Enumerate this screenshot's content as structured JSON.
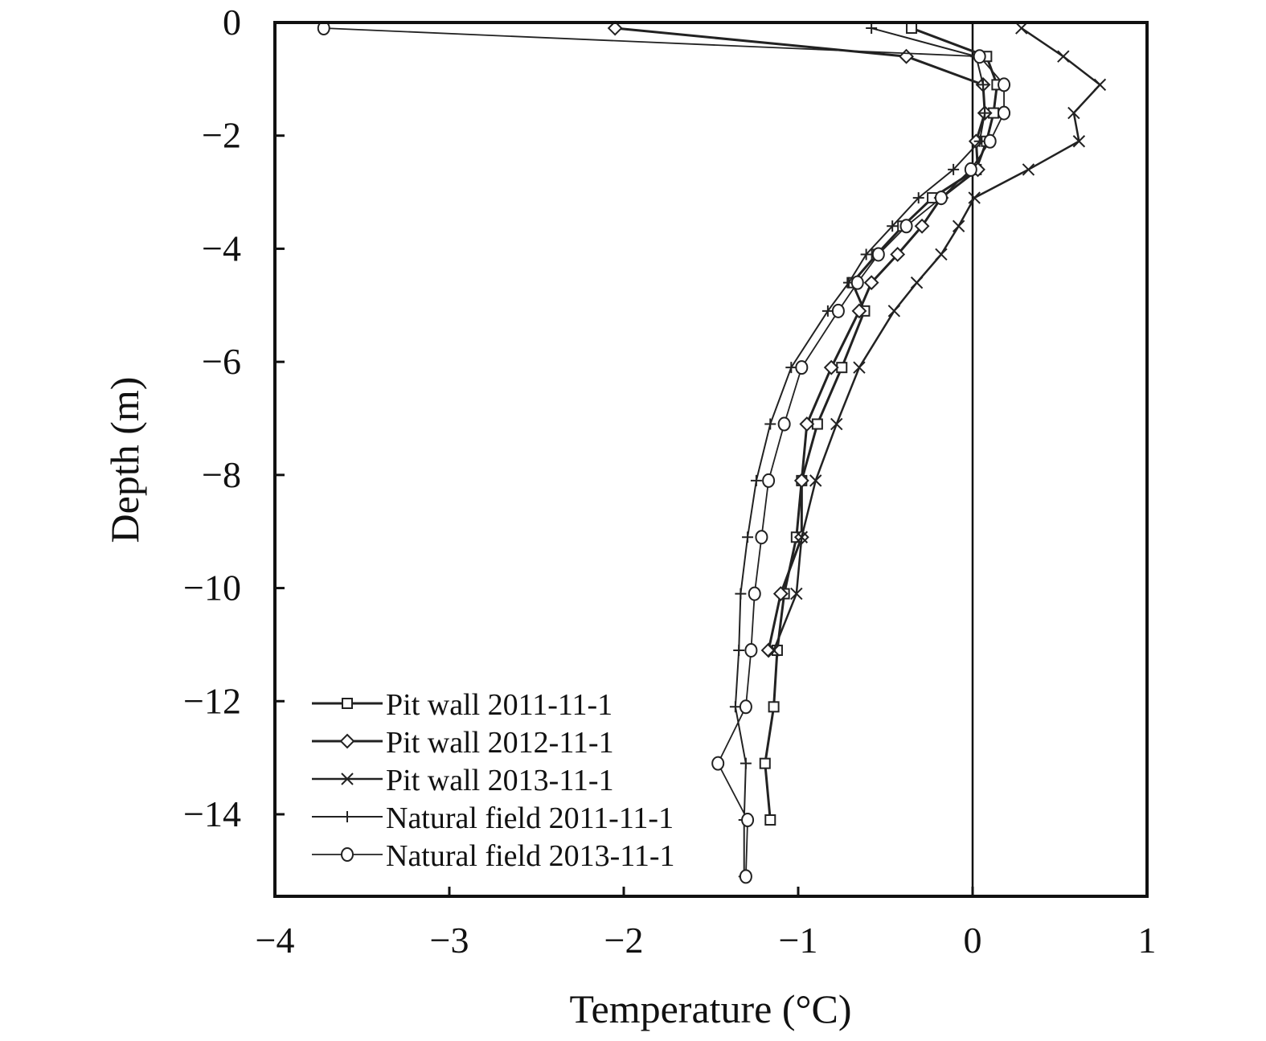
{
  "chart_data": {
    "type": "line",
    "title": "",
    "xlabel": "Temperature (°C)",
    "ylabel": "Depth (m)",
    "xlim": [
      -4,
      1
    ],
    "ylim": [
      -15.45,
      0
    ],
    "xticks": [
      -4,
      -3,
      -2,
      -1,
      0,
      1
    ],
    "xtick_labels": [
      "−4",
      "−3",
      "−2",
      "−1",
      "0",
      "1"
    ],
    "yticks": [
      0,
      -2,
      -4,
      -6,
      -8,
      -10,
      -12,
      -14
    ],
    "ytick_labels": [
      "0",
      "−2",
      "−4",
      "−6",
      "−8",
      "−10",
      "−12",
      "−14"
    ],
    "reference_line_x": 0,
    "grid": false,
    "legend_position": "bottom-left",
    "series": [
      {
        "name": "Pit wall 2011-11-1",
        "marker": "square",
        "depth": [
          -0.1,
          -0.6,
          -1.1,
          -1.6,
          -2.1,
          -2.6,
          -3.1,
          -3.6,
          -4.1,
          -4.6,
          -5.1,
          -6.1,
          -7.1,
          -8.1,
          -9.1,
          -10.1,
          -11.1,
          -12.1,
          -13.1,
          -14.1
        ],
        "temp": [
          -0.35,
          0.08,
          0.14,
          0.12,
          0.08,
          0.02,
          -0.23,
          -0.4,
          -0.55,
          -0.69,
          -0.62,
          -0.75,
          -0.89,
          -0.98,
          -1.01,
          -1.08,
          -1.12,
          -1.14,
          -1.19,
          -1.16
        ]
      },
      {
        "name": "Pit wall 2012-11-1",
        "marker": "diamond",
        "depth": [
          -0.1,
          -0.6,
          -1.1,
          -1.6,
          -2.1,
          -2.6,
          -3.1,
          -3.6,
          -4.1,
          -4.6,
          -5.1,
          -6.1,
          -7.1,
          -8.1,
          -9.1,
          -10.1,
          -11.1
        ],
        "temp": [
          -2.05,
          -0.38,
          0.06,
          0.07,
          0.02,
          0.03,
          -0.18,
          -0.29,
          -0.43,
          -0.58,
          -0.65,
          -0.81,
          -0.95,
          -0.98,
          -0.98,
          -1.1,
          -1.17
        ]
      },
      {
        "name": "Pit wall 2013-11-1",
        "marker": "x",
        "depth": [
          -0.1,
          -0.6,
          -1.1,
          -1.6,
          -2.1,
          -2.6,
          -3.1,
          -3.6,
          -4.1,
          -4.6,
          -5.1,
          -6.1,
          -7.1,
          -8.1,
          -9.1,
          -10.1,
          -11.1
        ],
        "temp": [
          0.28,
          0.52,
          0.73,
          0.58,
          0.61,
          0.32,
          0.01,
          -0.08,
          -0.18,
          -0.32,
          -0.45,
          -0.65,
          -0.78,
          -0.9,
          -0.98,
          -1.01,
          -1.14
        ]
      },
      {
        "name": "Natural field 2011-11-1",
        "marker": "plus",
        "depth": [
          -0.1,
          -0.6,
          -1.1,
          -1.6,
          -2.1,
          -2.6,
          -3.1,
          -3.6,
          -4.1,
          -4.6,
          -5.1,
          -6.1,
          -7.1,
          -8.1,
          -9.1,
          -10.1,
          -11.1,
          -12.1,
          -13.1,
          -14.1,
          -15.1
        ],
        "temp": [
          -0.58,
          0.02,
          0.06,
          0.07,
          0.04,
          -0.11,
          -0.31,
          -0.46,
          -0.61,
          -0.71,
          -0.83,
          -1.04,
          -1.16,
          -1.24,
          -1.29,
          -1.33,
          -1.34,
          -1.36,
          -1.3,
          -1.31,
          -1.31
        ]
      },
      {
        "name": "Natural field 2013-11-1",
        "marker": "circle",
        "depth": [
          -0.1,
          -0.6,
          -1.1,
          -1.6,
          -2.1,
          -2.6,
          -3.1,
          -3.6,
          -4.1,
          -4.6,
          -5.1,
          -6.1,
          -7.1,
          -8.1,
          -9.1,
          -10.1,
          -11.1,
          -12.1,
          -13.1,
          -14.1,
          -15.1
        ],
        "temp": [
          -3.72,
          0.04,
          0.18,
          0.18,
          0.1,
          -0.01,
          -0.18,
          -0.38,
          -0.54,
          -0.66,
          -0.77,
          -0.98,
          -1.08,
          -1.17,
          -1.21,
          -1.25,
          -1.27,
          -1.3,
          -1.46,
          -1.29,
          -1.3
        ]
      }
    ]
  }
}
